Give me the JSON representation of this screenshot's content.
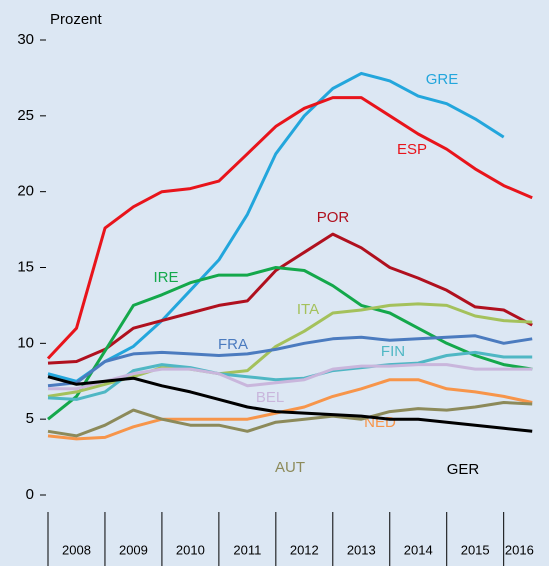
{
  "chart_data": {
    "type": "line",
    "y_label": "Prozent",
    "x": [
      2008,
      2008.5,
      2009,
      2009.5,
      2010,
      2010.5,
      2011,
      2011.5,
      2012,
      2012.5,
      2013,
      2013.5,
      2014,
      2014.5,
      2015,
      2015.5,
      2016,
      2016.5
    ],
    "xlim": [
      2008,
      2016.55
    ],
    "xticks": [
      2008,
      2009,
      2010,
      2011,
      2012,
      2013,
      2014,
      2015,
      2016
    ],
    "ylim": [
      0,
      30
    ],
    "yticks": [
      0,
      5,
      10,
      15,
      20,
      25,
      30
    ],
    "series": [
      {
        "name": "GRE",
        "color": "#23a6dc",
        "values": [
          8,
          7.5,
          8.8,
          9.8,
          11.5,
          13.5,
          15.5,
          18.5,
          22.5,
          25,
          26.8,
          27.8,
          27.3,
          26.3,
          25.8,
          24.8,
          23.6,
          null
        ]
      },
      {
        "name": "ESP",
        "color": "#e8141b",
        "values": [
          9,
          11,
          17.6,
          19,
          20,
          20.2,
          20.7,
          22.5,
          24.3,
          25.5,
          26.2,
          26.2,
          25,
          23.8,
          22.8,
          21.5,
          20.4,
          19.6
        ]
      },
      {
        "name": "POR",
        "color": "#b0101e",
        "values": [
          8.7,
          8.8,
          9.6,
          11,
          11.5,
          12,
          12.5,
          12.8,
          14.8,
          16,
          17.2,
          16.3,
          15,
          14.3,
          13.5,
          12.4,
          12.2,
          11.2
        ]
      },
      {
        "name": "IRE",
        "color": "#14a84b",
        "values": [
          5,
          6.5,
          9.5,
          12.5,
          13.2,
          14,
          14.5,
          14.5,
          15,
          14.8,
          13.8,
          12.5,
          12,
          11,
          10,
          9.2,
          8.6,
          8.3
        ]
      },
      {
        "name": "ITA",
        "color": "#a4c15b",
        "values": [
          6.5,
          6.8,
          7.3,
          7.8,
          8.4,
          8.3,
          8,
          8.2,
          9.8,
          10.8,
          12,
          12.2,
          12.5,
          12.6,
          12.5,
          11.8,
          11.5,
          11.4
        ]
      },
      {
        "name": "FRA",
        "color": "#4b7bbf",
        "values": [
          7.2,
          7.4,
          8.8,
          9.3,
          9.4,
          9.3,
          9.2,
          9.3,
          9.6,
          10,
          10.3,
          10.4,
          10.2,
          10.3,
          10.4,
          10.5,
          10,
          10.3
        ]
      },
      {
        "name": "FIN",
        "color": "#4fb7c4",
        "values": [
          6.4,
          6.3,
          6.8,
          8.2,
          8.6,
          8.4,
          8,
          7.8,
          7.6,
          7.7,
          8.2,
          8.4,
          8.6,
          8.7,
          9.2,
          9.4,
          9.1,
          9.1
        ]
      },
      {
        "name": "BEL",
        "color": "#c9b6dc",
        "values": [
          7,
          7,
          7.5,
          8,
          8.3,
          8.3,
          8,
          7.2,
          7.4,
          7.6,
          8.3,
          8.5,
          8.5,
          8.6,
          8.6,
          8.3,
          8.3,
          8.3
        ]
      },
      {
        "name": "NED",
        "color": "#f7954a",
        "values": [
          3.9,
          3.7,
          3.8,
          4.5,
          5,
          5,
          5,
          5,
          5.4,
          5.8,
          6.5,
          7,
          7.6,
          7.6,
          7,
          6.8,
          6.5,
          6.1
        ]
      },
      {
        "name": "AUT",
        "color": "#8c8a5a",
        "values": [
          4.2,
          3.9,
          4.6,
          5.6,
          5,
          4.6,
          4.6,
          4.2,
          4.8,
          5,
          5.2,
          5,
          5.5,
          5.7,
          5.6,
          5.8,
          6.1,
          6
        ]
      },
      {
        "name": "GER",
        "color": "#000000",
        "values": [
          7.8,
          7.3,
          7.5,
          7.7,
          7.2,
          6.8,
          6.3,
          5.8,
          5.5,
          5.4,
          5.3,
          5.2,
          5,
          5,
          4.8,
          4.6,
          4.4,
          4.2
        ]
      }
    ]
  }
}
